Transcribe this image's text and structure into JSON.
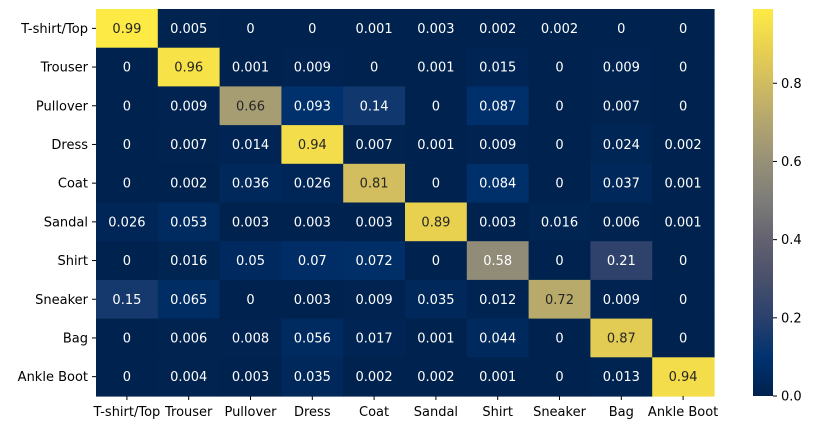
{
  "chart_data": {
    "type": "heatmap",
    "colormap": "cividis",
    "rows": [
      "T-shirt/Top",
      "Trouser",
      "Pullover",
      "Dress",
      "Coat",
      "Sandal",
      "Shirt",
      "Sneaker",
      "Bag",
      "Ankle Boot"
    ],
    "columns": [
      "T-shirt/Top",
      "Trouser",
      "Pullover",
      "Dress",
      "Coat",
      "Sandal",
      "Shirt",
      "Sneaker",
      "Bag",
      "Ankle Boot"
    ],
    "values": [
      [
        0.99,
        0.005,
        0,
        0,
        0.001,
        0.003,
        0.002,
        0.002,
        0,
        0
      ],
      [
        0,
        0.96,
        0.001,
        0.009,
        0,
        0.001,
        0.015,
        0,
        0.009,
        0
      ],
      [
        0,
        0.009,
        0.66,
        0.093,
        0.14,
        0,
        0.087,
        0,
        0.007,
        0
      ],
      [
        0,
        0.007,
        0.014,
        0.94,
        0.007,
        0.001,
        0.009,
        0,
        0.024,
        0.002
      ],
      [
        0,
        0.002,
        0.036,
        0.026,
        0.81,
        0,
        0.084,
        0,
        0.037,
        0.001
      ],
      [
        0.026,
        0.053,
        0.003,
        0.003,
        0.003,
        0.89,
        0.003,
        0.016,
        0.006,
        0.001
      ],
      [
        0,
        0.016,
        0.05,
        0.07,
        0.072,
        0,
        0.58,
        0,
        0.21,
        0
      ],
      [
        0.15,
        0.065,
        0,
        0.003,
        0.009,
        0.035,
        0.012,
        0.72,
        0.009,
        0
      ],
      [
        0,
        0.006,
        0.008,
        0.056,
        0.017,
        0.001,
        0.044,
        0,
        0.87,
        0
      ],
      [
        0,
        0.004,
        0.003,
        0.035,
        0.002,
        0.002,
        0.001,
        0,
        0.013,
        0.94
      ]
    ],
    "colorbar": {
      "range": [
        0,
        0.99
      ],
      "ticks": [
        0.0,
        0.2,
        0.4,
        0.6,
        0.8
      ],
      "tick_labels": [
        "0.0",
        "0.2",
        "0.4",
        "0.6",
        "0.8"
      ]
    }
  }
}
